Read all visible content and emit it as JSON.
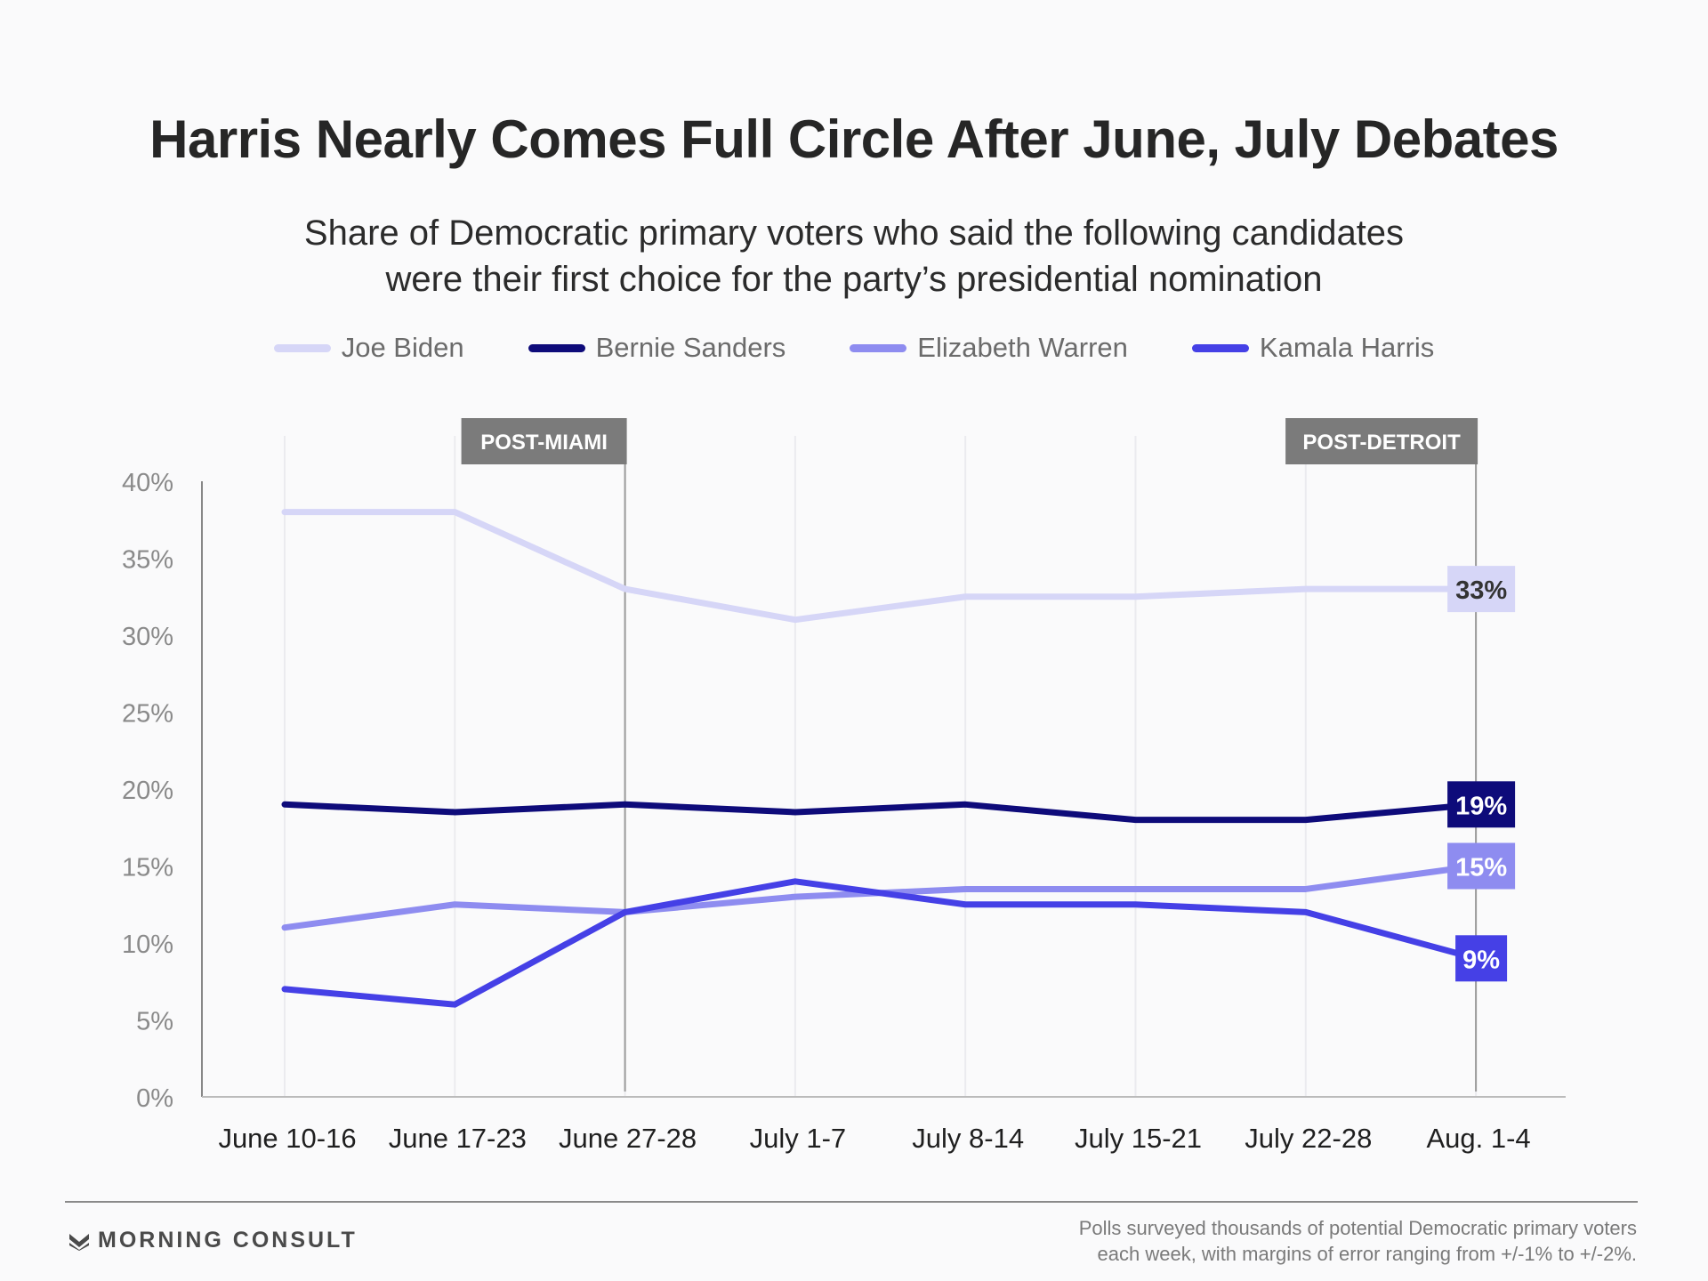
{
  "title": "Harris Nearly Comes Full Circle After June, July Debates",
  "subtitle_line1": "Share of Democratic primary voters who said the following candidates",
  "subtitle_line2": "were their first choice for the party’s presidential nomination",
  "brand": "MORNING CONSULT",
  "brand_icon": "morning-consult-logo-icon",
  "footnote_line1": "Polls surveyed thousands of potential Democratic primary voters",
  "footnote_line2": "each week, with margins of error ranging from +/-1% to +/-2%.",
  "chart_data": {
    "type": "line",
    "categories": [
      "June 10-16",
      "June 17-23",
      "June 27-28",
      "July 1-7",
      "July 8-14",
      "July 15-21",
      "July 22-28",
      "Aug. 1-4"
    ],
    "ylim": [
      0,
      40
    ],
    "yticks": [
      0,
      5,
      10,
      15,
      20,
      25,
      30,
      35,
      40
    ],
    "ytick_labels": [
      "0%",
      "5%",
      "10%",
      "15%",
      "20%",
      "25%",
      "30%",
      "35%",
      "40%"
    ],
    "grid": true,
    "legend_position": "top",
    "events": [
      {
        "label": "POST-MIAMI",
        "category": "June 27-28"
      },
      {
        "label": "POST-DETROIT",
        "category": "Aug. 1-4"
      }
    ],
    "series": [
      {
        "name": "Joe Biden",
        "color": "#d6d6f7",
        "values": [
          38,
          38,
          33,
          31,
          32.5,
          32.5,
          33,
          33
        ],
        "end_label": "33%",
        "end_label_color": "#333333"
      },
      {
        "name": "Bernie Sanders",
        "color": "#0e0b7a",
        "values": [
          19,
          18.5,
          19,
          18.5,
          19,
          18,
          18,
          19
        ],
        "end_label": "19%",
        "end_label_color": "#ffffff"
      },
      {
        "name": "Elizabeth Warren",
        "color": "#8e8cf0",
        "values": [
          11,
          12.5,
          12,
          13,
          13.5,
          13.5,
          13.5,
          15
        ],
        "end_label": "15%",
        "end_label_color": "#ffffff"
      },
      {
        "name": "Kamala Harris",
        "color": "#4540e6",
        "values": [
          7,
          6,
          12,
          14,
          12.5,
          12.5,
          12,
          9
        ],
        "end_label": "9%",
        "end_label_color": "#ffffff"
      }
    ]
  }
}
